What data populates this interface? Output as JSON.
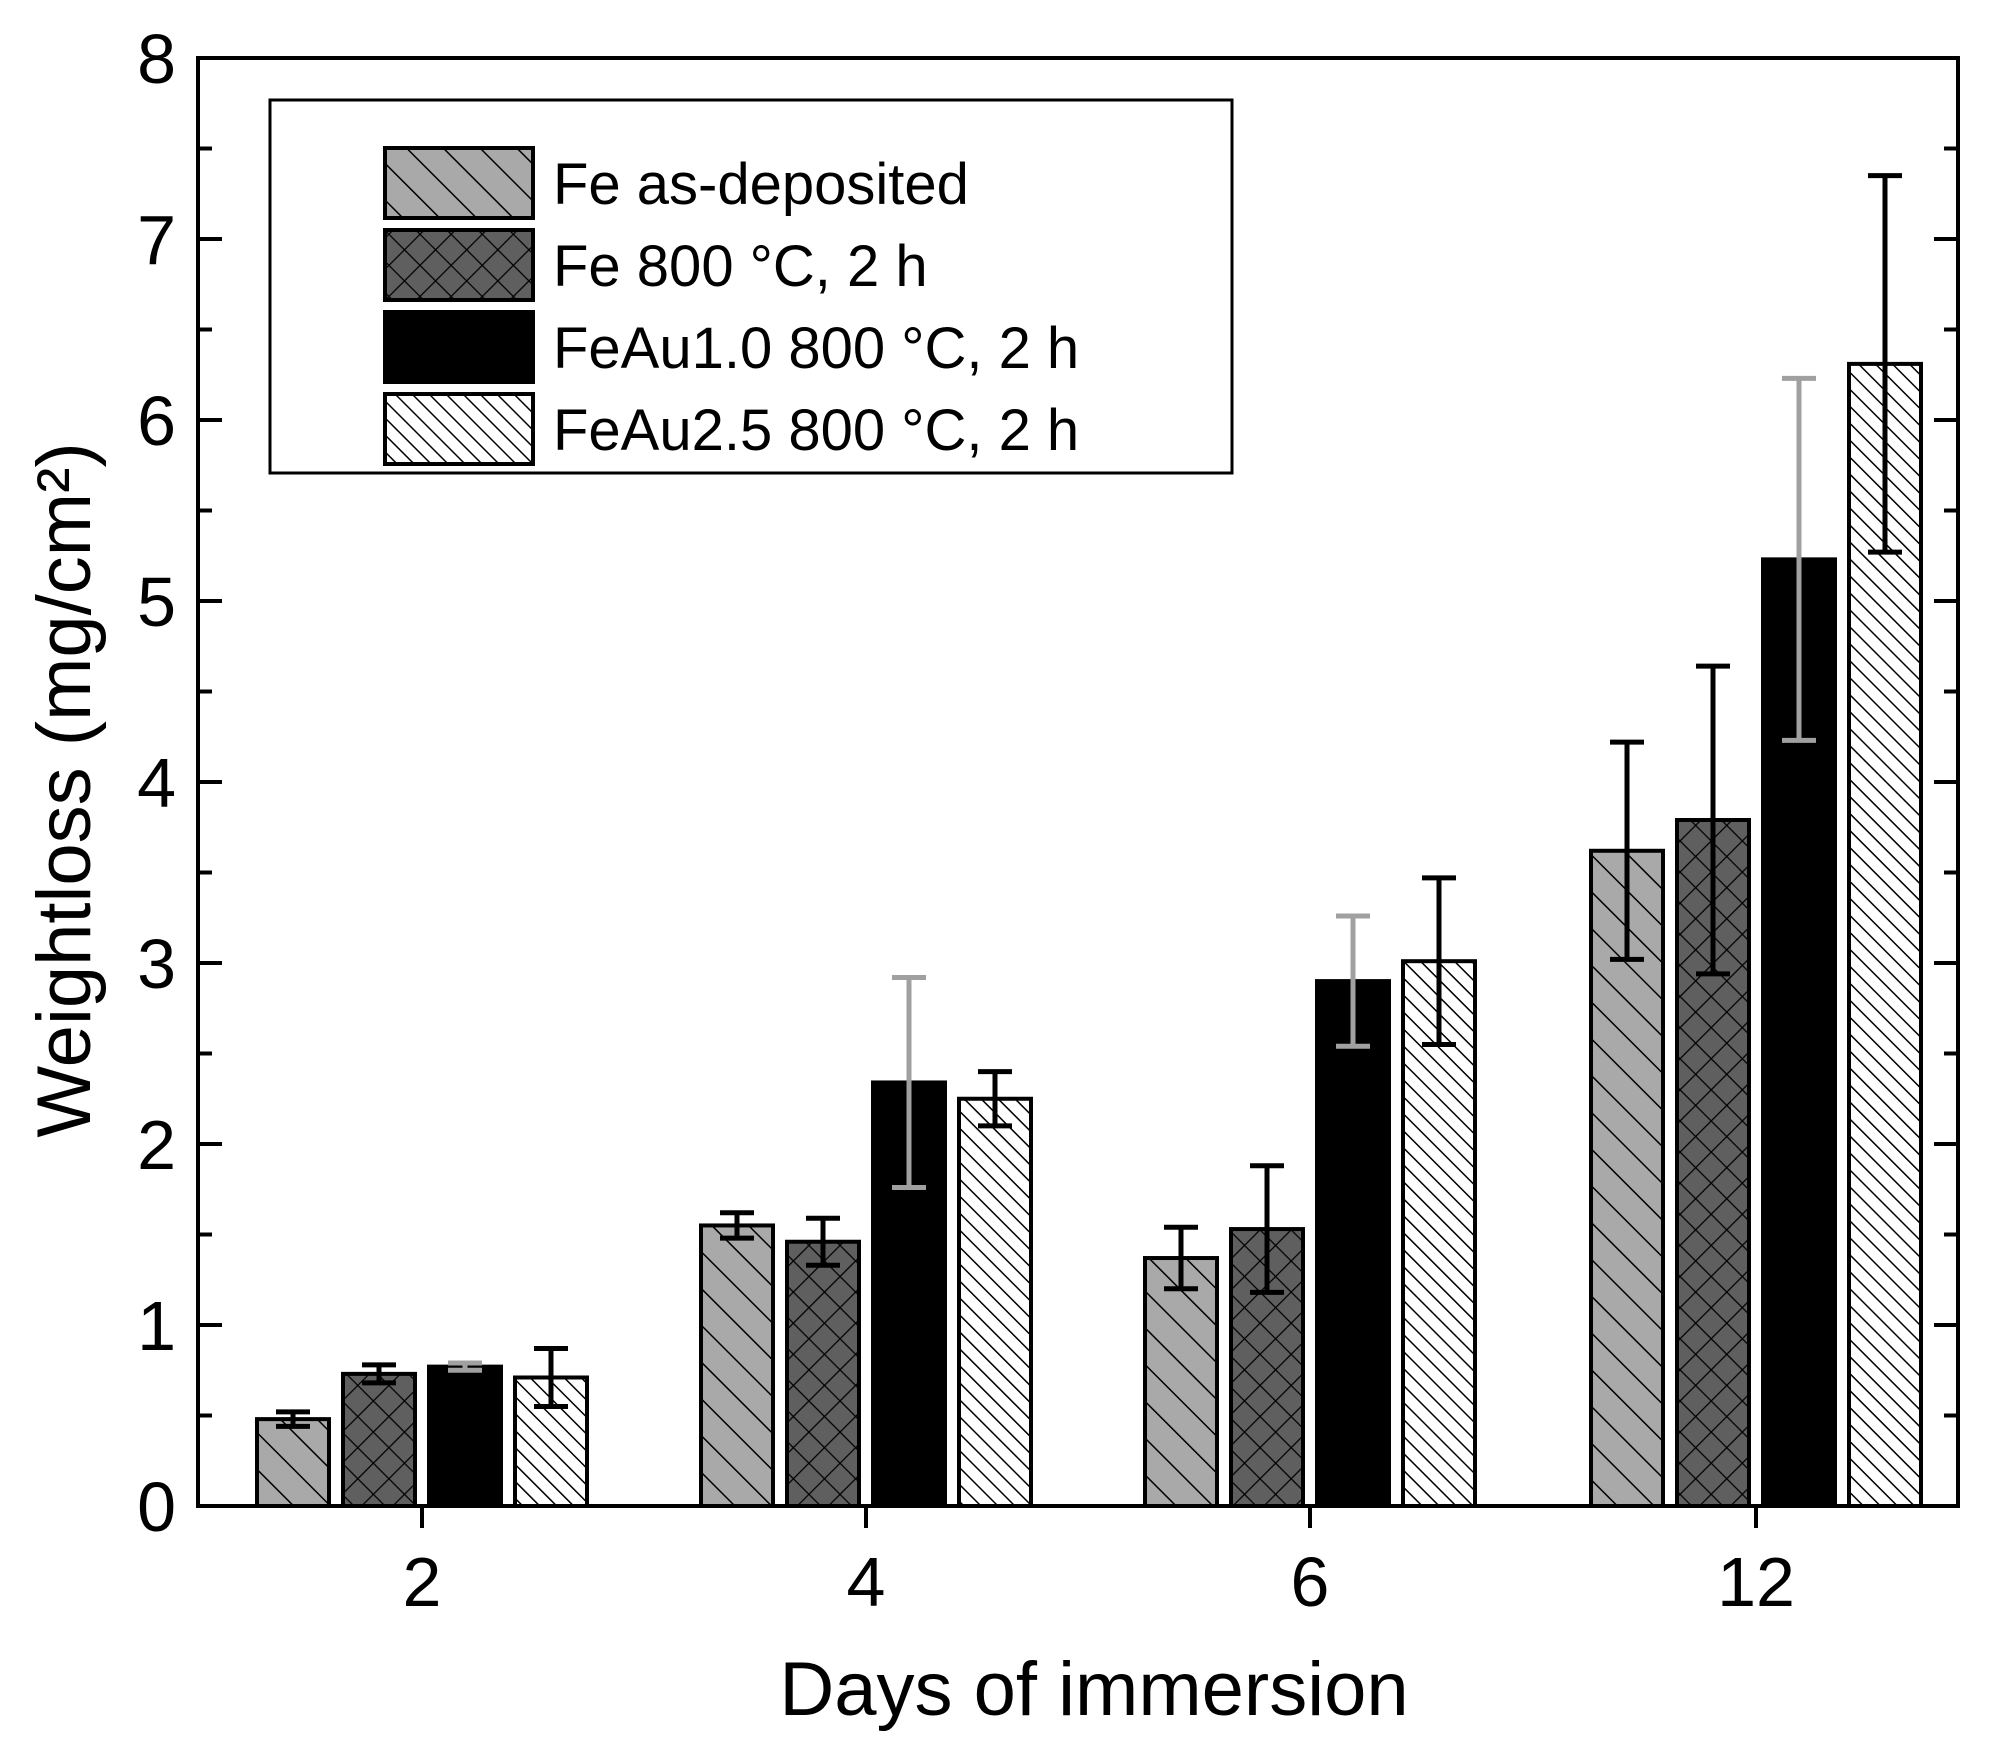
{
  "chart_data": {
    "type": "bar",
    "title": "",
    "xlabel": "Days of immersion",
    "ylabel": "Weightloss (mg/cm²)",
    "ylim": [
      0,
      8
    ],
    "y_ticks": [
      "0",
      "1",
      "2",
      "3",
      "4",
      "5",
      "6",
      "7",
      "8"
    ],
    "categories": [
      "2",
      "4",
      "6",
      "12"
    ],
    "legend_position": "top-left",
    "series": [
      {
        "name": "Fe as-deposited",
        "fill": "#a9a9a9",
        "pattern": "hatch-wide",
        "error_color": "#000000",
        "values": [
          0.48,
          1.55,
          1.37,
          3.62
        ],
        "errors": [
          0.04,
          0.07,
          0.17,
          0.6
        ]
      },
      {
        "name": "Fe 800 °C, 2 h",
        "fill": "#5f5f5f",
        "pattern": "crosshatch",
        "error_color": "#000000",
        "values": [
          0.73,
          1.46,
          1.53,
          3.79
        ],
        "errors": [
          0.05,
          0.13,
          0.35,
          0.85
        ]
      },
      {
        "name": "FeAu1.0 800 °C, 2 h",
        "fill": "#000000",
        "pattern": "solid",
        "error_color": "#a0a0a0",
        "values": [
          0.77,
          2.34,
          2.9,
          5.23
        ],
        "errors": [
          0.02,
          0.58,
          0.36,
          1.0
        ]
      },
      {
        "name": "FeAu2.5 800 °C, 2 h",
        "fill": "#ffffff",
        "pattern": "hatch-dense",
        "error_color": "#000000",
        "values": [
          0.71,
          2.25,
          3.01,
          6.31
        ],
        "errors": [
          0.16,
          0.15,
          0.46,
          1.04
        ]
      }
    ]
  }
}
